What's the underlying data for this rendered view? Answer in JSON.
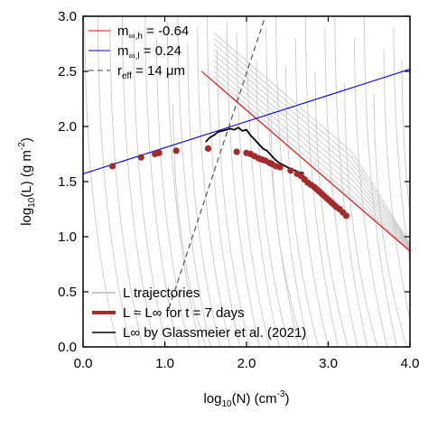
{
  "chart_data": {
    "type": "line",
    "xlabel": {
      "base": "log",
      "sub": "10",
      "mid": "(N) (cm",
      "sup": "-3",
      "end": ")"
    },
    "ylabel": {
      "base": "log",
      "sub": "10",
      "mid": "(L) (g m",
      "sup": "-2",
      "end": ")"
    },
    "xlim": [
      0.0,
      4.0
    ],
    "ylim": [
      0.0,
      3.0
    ],
    "x_ticks": [
      {
        "v": 0.0,
        "label": "0.0"
      },
      {
        "v": 1.0,
        "label": "1.0"
      },
      {
        "v": 2.0,
        "label": "2.0"
      },
      {
        "v": 3.0,
        "label": "3.0"
      },
      {
        "v": 4.0,
        "label": "4.0"
      }
    ],
    "y_ticks": [
      {
        "v": 0.0,
        "label": "0.0"
      },
      {
        "v": 0.5,
        "label": "0.5"
      },
      {
        "v": 1.0,
        "label": "1.0"
      },
      {
        "v": 1.5,
        "label": "1.5"
      },
      {
        "v": 2.0,
        "label": "2.0"
      },
      {
        "v": 2.5,
        "label": "2.5"
      },
      {
        "v": 3.0,
        "label": "3.0"
      }
    ],
    "grid": false,
    "legend_top": {
      "placement": "top-left",
      "entries": [
        {
          "pre": "m",
          "sub": "∞,h",
          "post": " = -0.64",
          "color": "#ff0000",
          "dash": false
        },
        {
          "pre": "m",
          "sub": "∞,l",
          "post": " = 0.24",
          "color": "#0000ff",
          "dash": false
        },
        {
          "pre": "r",
          "sub": "eff",
          "post": " = 14 μm",
          "color": "#444444",
          "dash": true
        }
      ]
    },
    "legend_bottom": {
      "placement": "bottom-left",
      "entries": [
        {
          "label": "L trajectories",
          "color": "#c8c8c8",
          "width": 2
        },
        {
          "label": "L ≈ L∞ for t = 7 days",
          "color": "#a52a2a",
          "width": 4
        },
        {
          "label": "L∞ by Glassmeier et al. (2021)",
          "color": "#000000",
          "width": 1.6
        }
      ]
    },
    "series": [
      {
        "kind": "fit_line",
        "color": "#ff0000",
        "x": [
          1.45,
          4.0
        ],
        "y": [
          2.5,
          0.87
        ]
      },
      {
        "kind": "fit_line",
        "color": "#0000ff",
        "x": [
          0.0,
          4.0
        ],
        "y": [
          1.57,
          2.52
        ]
      },
      {
        "kind": "reff_line",
        "color": "#444444",
        "x": [
          1.05,
          2.23
        ],
        "y": [
          0.35,
          3.0
        ]
      },
      {
        "kind": "glassmeier",
        "color": "#000000",
        "x": [
          1.5,
          1.55,
          1.6,
          1.65,
          1.7,
          1.75,
          1.8,
          1.85,
          1.9,
          1.95,
          2.0,
          2.05,
          2.1,
          2.15,
          2.2,
          2.25,
          2.3,
          2.35,
          2.4,
          2.45,
          2.5,
          2.55,
          2.6,
          2.65,
          2.7
        ],
        "y": [
          1.86,
          1.9,
          1.92,
          1.95,
          1.96,
          1.97,
          1.98,
          1.97,
          1.99,
          1.96,
          1.97,
          1.92,
          1.88,
          1.84,
          1.8,
          1.78,
          1.74,
          1.7,
          1.67,
          1.65,
          1.63,
          1.61,
          1.6,
          1.58,
          1.58
        ]
      },
      {
        "kind": "equilibrium_points",
        "color": "#a52a2a",
        "x": [
          0.36,
          0.71,
          0.88,
          0.93,
          1.14,
          1.53,
          1.88,
          2.0,
          2.05,
          2.1,
          2.15,
          2.19,
          2.23,
          2.28,
          2.31,
          2.36,
          2.41,
          2.54,
          2.62,
          2.67,
          2.71,
          2.75,
          2.79,
          2.83,
          2.86,
          2.89,
          2.92,
          2.95,
          2.98,
          3.01,
          3.04,
          3.07,
          3.1,
          3.14,
          3.18,
          3.22
        ],
        "y": [
          1.64,
          1.72,
          1.75,
          1.76,
          1.78,
          1.8,
          1.77,
          1.76,
          1.75,
          1.73,
          1.71,
          1.7,
          1.69,
          1.67,
          1.66,
          1.64,
          1.63,
          1.6,
          1.57,
          1.55,
          1.52,
          1.49,
          1.47,
          1.45,
          1.43,
          1.41,
          1.39,
          1.37,
          1.35,
          1.33,
          1.31,
          1.29,
          1.27,
          1.25,
          1.22,
          1.19
        ]
      }
    ],
    "trajectories": {
      "color": "#c8c8c8",
      "description_count": 34,
      "n0": [
        0.02,
        0.18,
        0.33,
        0.48,
        0.62,
        0.76,
        0.9,
        1.03,
        1.16,
        1.28,
        1.4,
        1.52,
        1.64,
        1.76,
        1.88,
        2.0,
        2.12,
        2.24,
        2.36,
        2.48,
        2.6,
        2.72,
        2.84,
        2.96,
        3.08,
        3.2,
        3.32,
        3.44,
        3.56,
        3.68,
        3.8,
        3.9,
        1.1,
        2.3
      ],
      "l0": [
        2.95,
        3.0,
        2.9,
        3.0,
        2.85,
        3.0,
        2.8,
        2.95,
        3.0,
        2.75,
        2.9,
        3.0,
        2.7,
        2.95,
        2.85,
        3.0,
        2.6,
        2.9,
        3.0,
        2.55,
        2.8,
        3.0,
        2.5,
        2.9,
        3.0,
        2.4,
        2.8,
        3.0,
        2.3,
        2.7,
        2.9,
        2.6,
        2.2,
        2.1
      ]
    }
  }
}
